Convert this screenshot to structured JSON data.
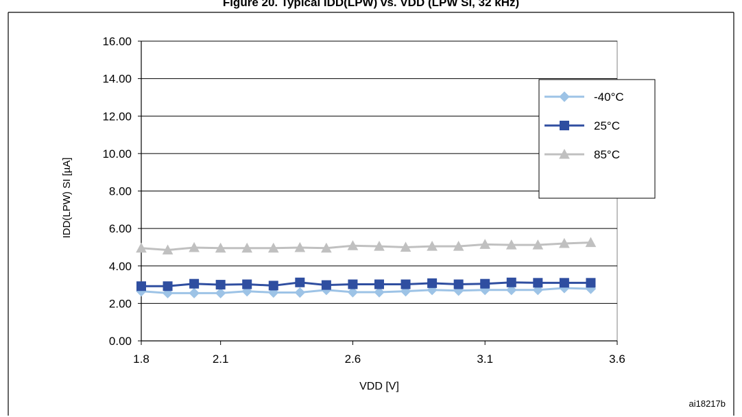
{
  "figure": {
    "title": "Figure 20. Typical IDD(LPW) vs. VDD (LPW SI, 32 kHz)",
    "id_label": "ai18217b"
  },
  "chart_data": {
    "type": "line",
    "title": "",
    "xlabel": "VDD [V]",
    "ylabel": "IDD(LPW) SI [µA]",
    "xlim": [
      1.8,
      3.6
    ],
    "ylim": [
      0,
      16
    ],
    "x_ticks": [
      "1.8",
      "2.1",
      "2.6",
      "3.1",
      "3.6"
    ],
    "y_ticks": [
      "0.00",
      "2.00",
      "4.00",
      "6.00",
      "8.00",
      "10.00",
      "12.00",
      "14.00",
      "16.00"
    ],
    "grid": true,
    "legend_position": "top-right",
    "x": [
      1.8,
      1.9,
      2.0,
      2.1,
      2.2,
      2.3,
      2.4,
      2.5,
      2.6,
      2.7,
      2.8,
      2.9,
      3.0,
      3.1,
      3.2,
      3.3,
      3.4,
      3.5
    ],
    "series": [
      {
        "name": "-40°C",
        "marker": "diamond",
        "color": "#9dc3e6",
        "values": [
          2.65,
          2.55,
          2.55,
          2.55,
          2.65,
          2.58,
          2.58,
          2.72,
          2.6,
          2.6,
          2.65,
          2.72,
          2.68,
          2.72,
          2.72,
          2.72,
          2.82,
          2.78
        ]
      },
      {
        "name": "25°C",
        "marker": "square",
        "color": "#2f4ea0",
        "values": [
          2.92,
          2.92,
          3.05,
          3.0,
          3.02,
          2.95,
          3.12,
          2.98,
          3.02,
          3.02,
          3.02,
          3.08,
          3.02,
          3.05,
          3.12,
          3.1,
          3.1,
          3.1
        ]
      },
      {
        "name": "85°C",
        "marker": "triangle",
        "color": "#c0c0c0",
        "values": [
          4.95,
          4.85,
          4.98,
          4.95,
          4.95,
          4.95,
          4.98,
          4.95,
          5.08,
          5.05,
          5.0,
          5.05,
          5.05,
          5.15,
          5.12,
          5.12,
          5.2,
          5.25
        ]
      }
    ]
  }
}
